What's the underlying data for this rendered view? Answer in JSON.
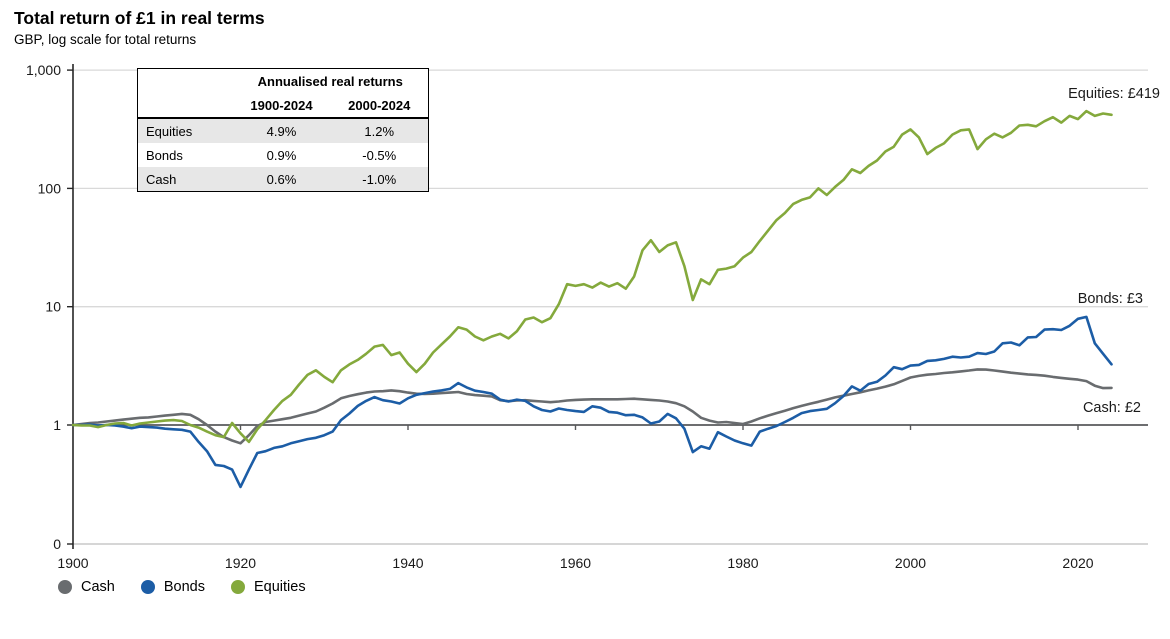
{
  "header": {
    "title": "Total return of £1 in real terms",
    "subtitle": "GBP, log scale for total returns"
  },
  "stats_table": {
    "title": "Annualised real returns",
    "col_headers": [
      "1900-2024",
      "2000-2024"
    ],
    "rows": [
      {
        "name": "Equities",
        "v1": "4.9%",
        "v2": "1.2%"
      },
      {
        "name": "Bonds",
        "v1": "0.9%",
        "v2": "-0.5%"
      },
      {
        "name": "Cash",
        "v1": "0.6%",
        "v2": "-1.0%"
      }
    ]
  },
  "legend": {
    "items": [
      {
        "label": "Cash",
        "color": "#696c6f"
      },
      {
        "label": "Bonds",
        "color": "#1c5da6"
      },
      {
        "label": "Equities",
        "color": "#84a93c"
      }
    ]
  },
  "chart_data": {
    "type": "line",
    "title": "Total return of £1 in real terms",
    "subtitle": "GBP, log scale for total returns",
    "y_scale": "log",
    "y_tick_labels": [
      "1,000",
      "100",
      "10",
      "1",
      "0"
    ],
    "y_tick_values": [
      1000,
      100,
      10,
      1,
      0
    ],
    "x_ticks": [
      1900,
      1920,
      1940,
      1960,
      1980,
      2000,
      2020
    ],
    "x_range": [
      1900,
      2024
    ],
    "grid": "horizontal",
    "legend_position": "bottom-left",
    "currency": "GBP",
    "series": [
      {
        "name": "Cash",
        "color": "#696c6f",
        "end_label": "Cash: £2",
        "end_value": 2,
        "values": [
          1.0,
          1.02,
          1.04,
          1.05,
          1.07,
          1.09,
          1.11,
          1.13,
          1.15,
          1.16,
          1.18,
          1.2,
          1.22,
          1.24,
          1.22,
          1.12,
          1.0,
          0.88,
          0.79,
          0.74,
          0.7,
          0.82,
          0.98,
          1.06,
          1.09,
          1.12,
          1.15,
          1.2,
          1.25,
          1.3,
          1.4,
          1.52,
          1.68,
          1.76,
          1.82,
          1.88,
          1.92,
          1.93,
          1.96,
          1.93,
          1.88,
          1.84,
          1.83,
          1.84,
          1.86,
          1.88,
          1.9,
          1.83,
          1.79,
          1.77,
          1.74,
          1.62,
          1.59,
          1.61,
          1.62,
          1.6,
          1.58,
          1.56,
          1.58,
          1.61,
          1.63,
          1.64,
          1.65,
          1.65,
          1.65,
          1.65,
          1.66,
          1.67,
          1.65,
          1.63,
          1.61,
          1.58,
          1.53,
          1.44,
          1.3,
          1.15,
          1.09,
          1.05,
          1.06,
          1.04,
          1.02,
          1.07,
          1.14,
          1.2,
          1.26,
          1.32,
          1.39,
          1.45,
          1.51,
          1.57,
          1.64,
          1.71,
          1.77,
          1.83,
          1.89,
          1.96,
          2.03,
          2.11,
          2.21,
          2.36,
          2.52,
          2.6,
          2.66,
          2.7,
          2.75,
          2.79,
          2.84,
          2.89,
          2.95,
          2.94,
          2.89,
          2.83,
          2.77,
          2.72,
          2.68,
          2.65,
          2.61,
          2.55,
          2.5,
          2.46,
          2.42,
          2.35,
          2.15,
          2.05,
          2.06
        ]
      },
      {
        "name": "Bonds",
        "color": "#1c5da6",
        "end_label": "Bonds: £3",
        "end_value": 3,
        "values": [
          1.0,
          1.0,
          1.01,
          0.99,
          1.0,
          0.99,
          0.97,
          0.94,
          0.97,
          0.96,
          0.95,
          0.93,
          0.92,
          0.91,
          0.88,
          0.72,
          0.6,
          0.46,
          0.45,
          0.42,
          0.3,
          0.42,
          0.58,
          0.6,
          0.64,
          0.66,
          0.7,
          0.73,
          0.76,
          0.78,
          0.82,
          0.88,
          1.1,
          1.25,
          1.45,
          1.6,
          1.72,
          1.62,
          1.58,
          1.52,
          1.68,
          1.8,
          1.86,
          1.92,
          1.96,
          2.02,
          2.26,
          2.08,
          1.95,
          1.9,
          1.84,
          1.64,
          1.58,
          1.64,
          1.6,
          1.44,
          1.34,
          1.3,
          1.38,
          1.34,
          1.31,
          1.29,
          1.44,
          1.4,
          1.29,
          1.27,
          1.21,
          1.22,
          1.16,
          1.03,
          1.07,
          1.24,
          1.14,
          0.93,
          0.59,
          0.66,
          0.63,
          0.87,
          0.8,
          0.74,
          0.7,
          0.67,
          0.88,
          0.93,
          0.98,
          1.06,
          1.15,
          1.26,
          1.31,
          1.34,
          1.37,
          1.53,
          1.76,
          2.12,
          1.95,
          2.22,
          2.32,
          2.62,
          3.08,
          2.96,
          3.18,
          3.22,
          3.48,
          3.52,
          3.62,
          3.78,
          3.72,
          3.78,
          4.05,
          3.98,
          4.18,
          4.9,
          4.98,
          4.72,
          5.5,
          5.55,
          6.4,
          6.45,
          6.35,
          6.9,
          7.9,
          8.2,
          4.9,
          4.0,
          3.26
        ]
      },
      {
        "name": "Equities",
        "color": "#84a93c",
        "end_label": "Equities: £419",
        "end_value": 419,
        "values": [
          1.0,
          0.99,
          0.99,
          0.96,
          1.0,
          1.03,
          1.04,
          0.99,
          1.03,
          1.05,
          1.07,
          1.09,
          1.1,
          1.08,
          1.0,
          0.95,
          0.88,
          0.82,
          0.79,
          1.04,
          0.85,
          0.72,
          0.92,
          1.1,
          1.34,
          1.6,
          1.8,
          2.2,
          2.65,
          2.9,
          2.55,
          2.3,
          2.9,
          3.25,
          3.55,
          4.0,
          4.6,
          4.75,
          3.9,
          4.1,
          3.3,
          2.8,
          3.3,
          4.1,
          4.8,
          5.6,
          6.7,
          6.4,
          5.6,
          5.2,
          5.6,
          5.9,
          5.4,
          6.2,
          7.8,
          8.1,
          7.4,
          8.0,
          10.5,
          15.5,
          15.0,
          15.5,
          14.5,
          16.0,
          14.8,
          15.8,
          14.2,
          18.0,
          30.0,
          36.5,
          29.0,
          33.0,
          35.0,
          22.0,
          11.4,
          17.0,
          15.5,
          20.5,
          21.0,
          22.0,
          26.0,
          29.0,
          36.0,
          44.0,
          54.0,
          62.0,
          74.0,
          80.0,
          84.0,
          100,
          88,
          103,
          118,
          145,
          135,
          155,
          172,
          205,
          225,
          285,
          315,
          270,
          195,
          220,
          240,
          285,
          310,
          315,
          215,
          260,
          290,
          270,
          295,
          340,
          345,
          335,
          370,
          400,
          360,
          410,
          385,
          450,
          410,
          430,
          419
        ]
      }
    ]
  }
}
